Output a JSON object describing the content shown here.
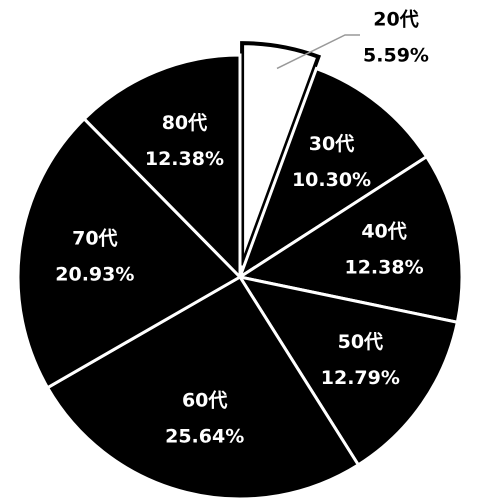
{
  "chart_data": {
    "type": "pie",
    "categories": [
      "20代",
      "30代",
      "40代",
      "50代",
      "60代",
      "70代",
      "80代"
    ],
    "values": [
      5.59,
      10.3,
      12.38,
      12.79,
      25.64,
      20.93,
      12.38
    ],
    "value_labels": [
      "5.59%",
      "10.30%",
      "12.38%",
      "12.79%",
      "25.64%",
      "20.93%",
      "12.38%"
    ],
    "colors": [
      "#ffffff",
      "#000000",
      "#000000",
      "#000000",
      "#000000",
      "#000000",
      "#000000"
    ]
  }
}
